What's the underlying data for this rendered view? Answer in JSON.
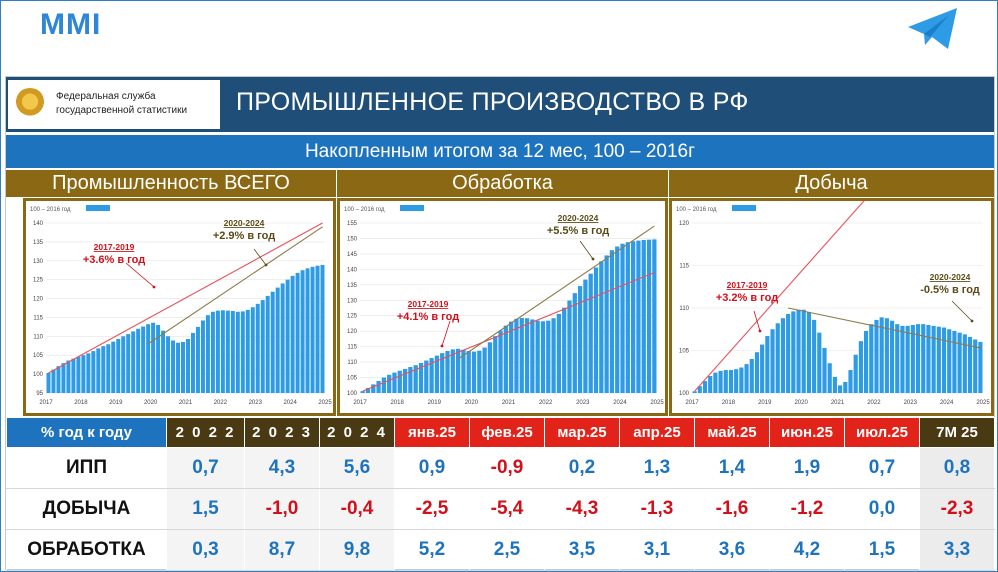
{
  "brand": "MMI",
  "header": {
    "logo_line1": "Федеральная служба",
    "logo_line2": "государственной статистики",
    "title": "ПРОМЫШЛЕННОЕ ПРОИЗВОДСТВО В РФ",
    "subtitle": "Накопленным итогом за 12 мес, 100 – 2016г"
  },
  "colors": {
    "bar": "#2e9be6",
    "header": "#1f4e79",
    "sub": "#1e73be",
    "brown": "#8b6914",
    "pos": "#1e73be",
    "neg": "#d0101a",
    "trend1": "#e8505b",
    "trend2": "#8d7b4a"
  },
  "chart_data": [
    {
      "type": "bar",
      "title": "Промышленность ВСЕГО",
      "legend": "100 – 2016 год",
      "ylim": [
        95,
        140
      ],
      "yticks": [
        95,
        100,
        105,
        110,
        115,
        120,
        125,
        130,
        135,
        140
      ],
      "xticks": [
        "2017",
        "2018",
        "2019",
        "2020",
        "2021",
        "2022",
        "2023",
        "2024",
        "2025"
      ],
      "values": [
        100.3,
        101.2,
        102.1,
        102.9,
        103.6,
        104.1,
        104.6,
        105.0,
        105.5,
        106.1,
        106.8,
        107.4,
        107.9,
        108.6,
        109.3,
        110.0,
        110.6,
        111.3,
        112.0,
        112.6,
        113.2,
        113.6,
        113.0,
        111.5,
        110.0,
        108.9,
        108.3,
        108.5,
        109.3,
        110.9,
        112.5,
        114.2,
        115.6,
        116.5,
        116.8,
        116.9,
        116.8,
        116.7,
        116.5,
        116.6,
        117.0,
        117.7,
        118.6,
        119.6,
        120.7,
        121.8,
        122.9,
        124.0,
        125.0,
        126.0,
        126.8,
        127.5,
        128.0,
        128.4,
        128.7,
        128.9
      ],
      "annotations": [
        {
          "label": "2017-2019",
          "text": "+3.6% в год",
          "color": "red"
        },
        {
          "label": "2020-2024",
          "text": "+2.9% в год",
          "color": "olive"
        }
      ]
    },
    {
      "type": "bar",
      "title": "Обработка",
      "legend": "100 – 2016 год",
      "ylim": [
        100,
        155
      ],
      "yticks": [
        100,
        105,
        110,
        115,
        120,
        125,
        130,
        135,
        140,
        145,
        150,
        155
      ],
      "xticks": [
        "2017",
        "2018",
        "2019",
        "2020",
        "2021",
        "2022",
        "2023",
        "2024",
        "2025"
      ],
      "values": [
        100.6,
        101.6,
        102.8,
        103.9,
        105.0,
        105.9,
        106.6,
        107.2,
        107.8,
        108.4,
        109.0,
        109.7,
        110.5,
        111.3,
        112.1,
        112.9,
        113.6,
        114.1,
        114.3,
        114.0,
        113.6,
        113.4,
        113.7,
        114.7,
        116.4,
        118.4,
        120.2,
        121.8,
        123.1,
        124.0,
        124.3,
        124.2,
        123.8,
        123.4,
        123.2,
        123.4,
        124.2,
        125.6,
        127.6,
        129.9,
        132.3,
        134.6,
        136.7,
        138.6,
        140.6,
        142.6,
        144.5,
        146.2,
        147.4,
        148.3,
        148.8,
        149.1,
        149.3,
        149.5,
        149.6,
        149.7
      ],
      "annotations": [
        {
          "label": "2017-2019",
          "text": "+4.1% в год",
          "color": "red"
        },
        {
          "label": "2020-2024",
          "text": "+5.5% в год",
          "color": "olive"
        }
      ]
    },
    {
      "type": "bar",
      "title": "Добыча",
      "legend": "100 – 2016 год",
      "ylim": [
        100,
        120
      ],
      "yticks": [
        100,
        105,
        110,
        115,
        120
      ],
      "xticks": [
        "2017",
        "2018",
        "2019",
        "2020",
        "2021",
        "2022",
        "2023",
        "2024",
        "2025"
      ],
      "values": [
        100.2,
        100.8,
        101.4,
        102.0,
        102.4,
        102.6,
        102.7,
        102.7,
        102.8,
        103.0,
        103.4,
        104.0,
        104.8,
        105.7,
        106.7,
        107.5,
        108.2,
        108.8,
        109.3,
        109.6,
        109.8,
        109.8,
        109.5,
        108.6,
        107.1,
        105.3,
        103.5,
        101.9,
        100.9,
        101.3,
        102.7,
        104.5,
        106.1,
        107.3,
        108.1,
        108.6,
        108.9,
        108.8,
        108.5,
        108.1,
        107.9,
        107.9,
        108.0,
        108.1,
        108.1,
        108.0,
        107.9,
        107.8,
        107.7,
        107.5,
        107.3,
        107.1,
        106.9,
        106.6,
        106.3,
        106.0
      ],
      "annotations": [
        {
          "label": "2017-2019",
          "text": "+3.2% в год",
          "color": "red"
        },
        {
          "label": "2020-2024",
          "text": "-0.5% в год",
          "color": "olive"
        }
      ]
    }
  ],
  "table": {
    "label_header": "% год к году",
    "year_headers": [
      "2 0 2 2",
      "2 0 2 3",
      "2 0 2 4"
    ],
    "month_headers": [
      "янв.25",
      "фев.25",
      "мар.25",
      "апр.25",
      "май.25",
      "июн.25",
      "июл.25"
    ],
    "ytd_header": "7М 25",
    "rows": [
      {
        "label": "ИПП",
        "values": [
          "0,7",
          "4,3",
          "5,6",
          "0,9",
          "-0,9",
          "0,2",
          "1,3",
          "1,4",
          "1,9",
          "0,7",
          "0,8"
        ]
      },
      {
        "label": "ДОБЫЧА",
        "values": [
          "1,5",
          "-1,0",
          "-0,4",
          "-2,5",
          "-5,4",
          "-4,3",
          "-1,3",
          "-1,6",
          "-1,2",
          "0,0",
          "-2,3"
        ]
      },
      {
        "label": "ОБРАБОТКА",
        "values": [
          "0,3",
          "8,7",
          "9,8",
          "5,2",
          "2,5",
          "3,5",
          "3,1",
          "3,6",
          "4,2",
          "1,5",
          "3,3"
        ]
      }
    ]
  }
}
